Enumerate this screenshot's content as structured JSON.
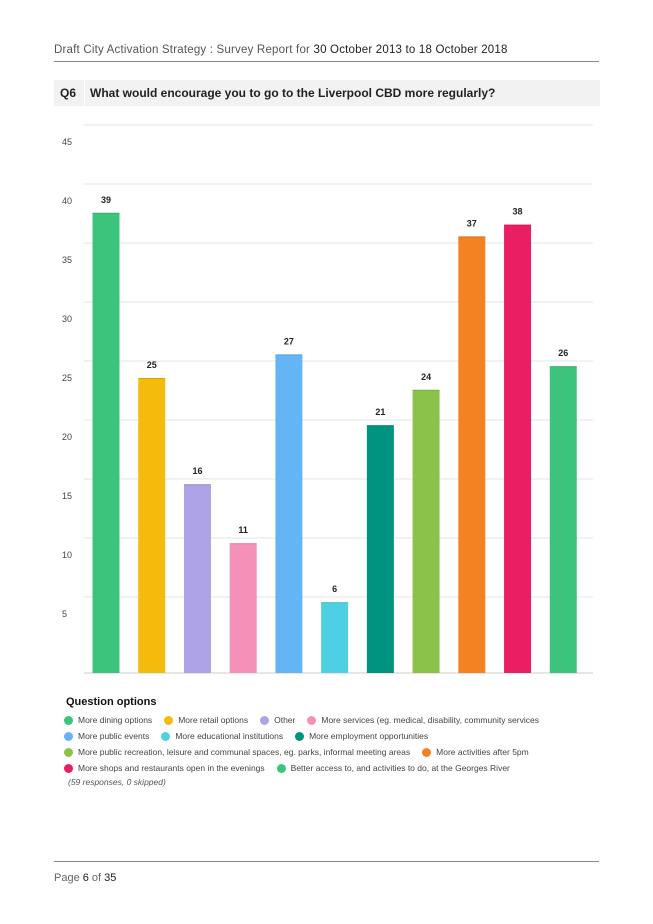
{
  "header": {
    "prefix": "Draft City Activation Strategy : Survey Report for ",
    "dates": "30 October 2013 to 18 October 2018"
  },
  "question": {
    "number": "Q6",
    "text": "What would encourage you to go to the Liverpool CBD more regularly?"
  },
  "chart_data": {
    "type": "bar",
    "categories": [
      "More dining options",
      "More retail options",
      "Other",
      "More services (eg. medical, disability, community services",
      "More public events",
      "More educational institutions",
      "More employment opportunities",
      "More public recreation, leisure and communal spaces, eg. parks, informal meeting areas",
      "More activities after 5pm",
      "More shops and restaurants open in the evenings",
      "Better access to, and activities to do, at the Georges River"
    ],
    "values": [
      39,
      25,
      16,
      11,
      27,
      6,
      21,
      24,
      37,
      38,
      26
    ],
    "colors": [
      "#3cc47c",
      "#f5bb0c",
      "#ada3e6",
      "#f590b8",
      "#64b5f6",
      "#4dd0e1",
      "#009480",
      "#8bc34a",
      "#f58220",
      "#e91e63",
      "#3cc47c"
    ],
    "ylim": [
      0,
      45
    ],
    "yticks": [
      5,
      10,
      15,
      20,
      25,
      30,
      35,
      40,
      45
    ],
    "grid": true,
    "legend_title": "Question options",
    "legend_position": "bottom"
  },
  "responses": "(59 responses, 0 skipped)",
  "footer": {
    "prefix": "Page ",
    "page": "6",
    "mid": " of ",
    "total": "35"
  }
}
